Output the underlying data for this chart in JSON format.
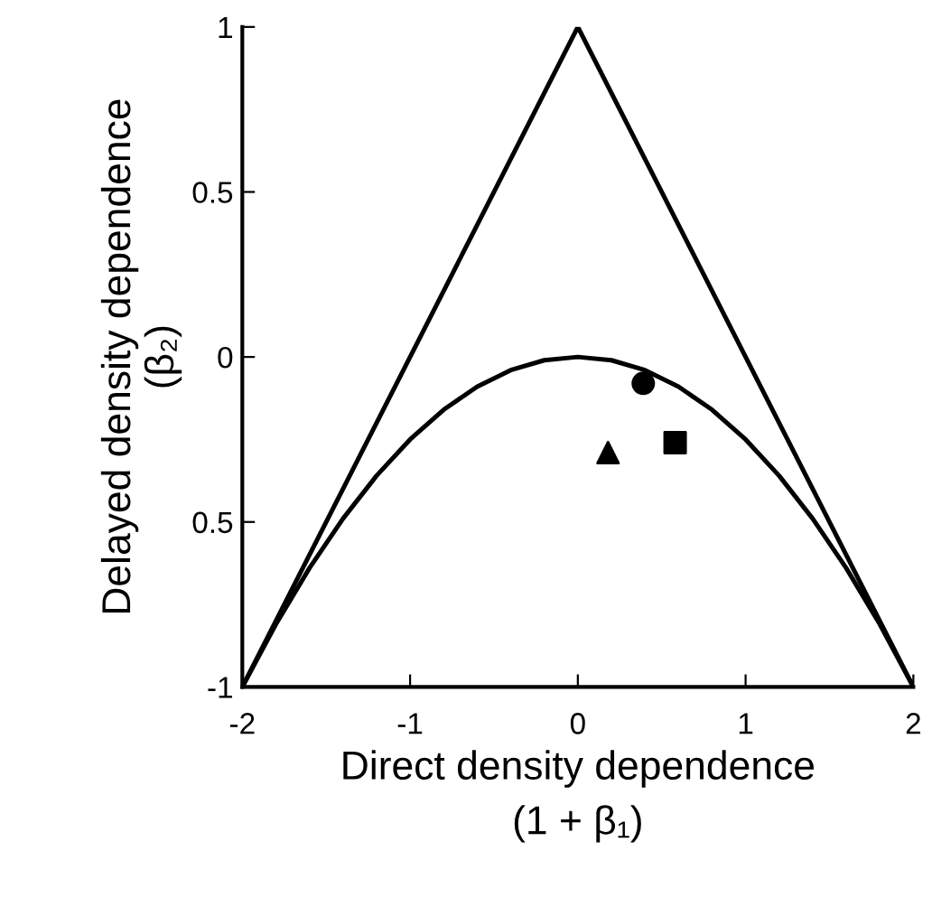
{
  "chart_data": {
    "type": "line",
    "xlabel": "Direct density dependence\n(1 + β₁)",
    "ylabel": "Delayed density dependence\n(β₂)",
    "xlim": [
      -2,
      2
    ],
    "ylim": [
      -1,
      1
    ],
    "xticks": [
      -2,
      -1,
      0,
      1,
      2
    ],
    "yticks": [
      -1,
      {
        "value": -0.5,
        "label": "0.5"
      },
      0,
      0.5,
      1
    ],
    "grid": false,
    "legend": false,
    "series": [
      {
        "color": "#000000",
        "marker": "none",
        "x": [
          -2,
          0,
          2
        ],
        "values": [
          -1,
          1,
          -1
        ]
      },
      {
        "color": "#000000",
        "marker": "none",
        "x": [
          -2,
          -1.8,
          -1.6,
          -1.4,
          -1.2,
          -1,
          -0.8,
          -0.6,
          -0.4,
          -0.2,
          0,
          0.2,
          0.4,
          0.6,
          0.8,
          1,
          1.2,
          1.4,
          1.6,
          1.8,
          2
        ],
        "values": [
          -1,
          -0.81,
          -0.64,
          -0.49,
          -0.36,
          -0.25,
          -0.16,
          -0.09,
          -0.04,
          -0.01,
          0,
          -0.01,
          -0.04,
          -0.09,
          -0.16,
          -0.25,
          -0.36,
          -0.49,
          -0.64,
          -0.81,
          -1
        ]
      },
      {
        "type": "scatter",
        "color": "#000000",
        "marker": "circle",
        "x": [
          0.39
        ],
        "values": [
          -0.08
        ]
      },
      {
        "type": "scatter",
        "color": "#000000",
        "marker": "square",
        "x": [
          0.58
        ],
        "values": [
          -0.26
        ]
      },
      {
        "type": "scatter",
        "color": "#000000",
        "marker": "triangle",
        "x": [
          0.18
        ],
        "values": [
          -0.29
        ]
      }
    ]
  }
}
